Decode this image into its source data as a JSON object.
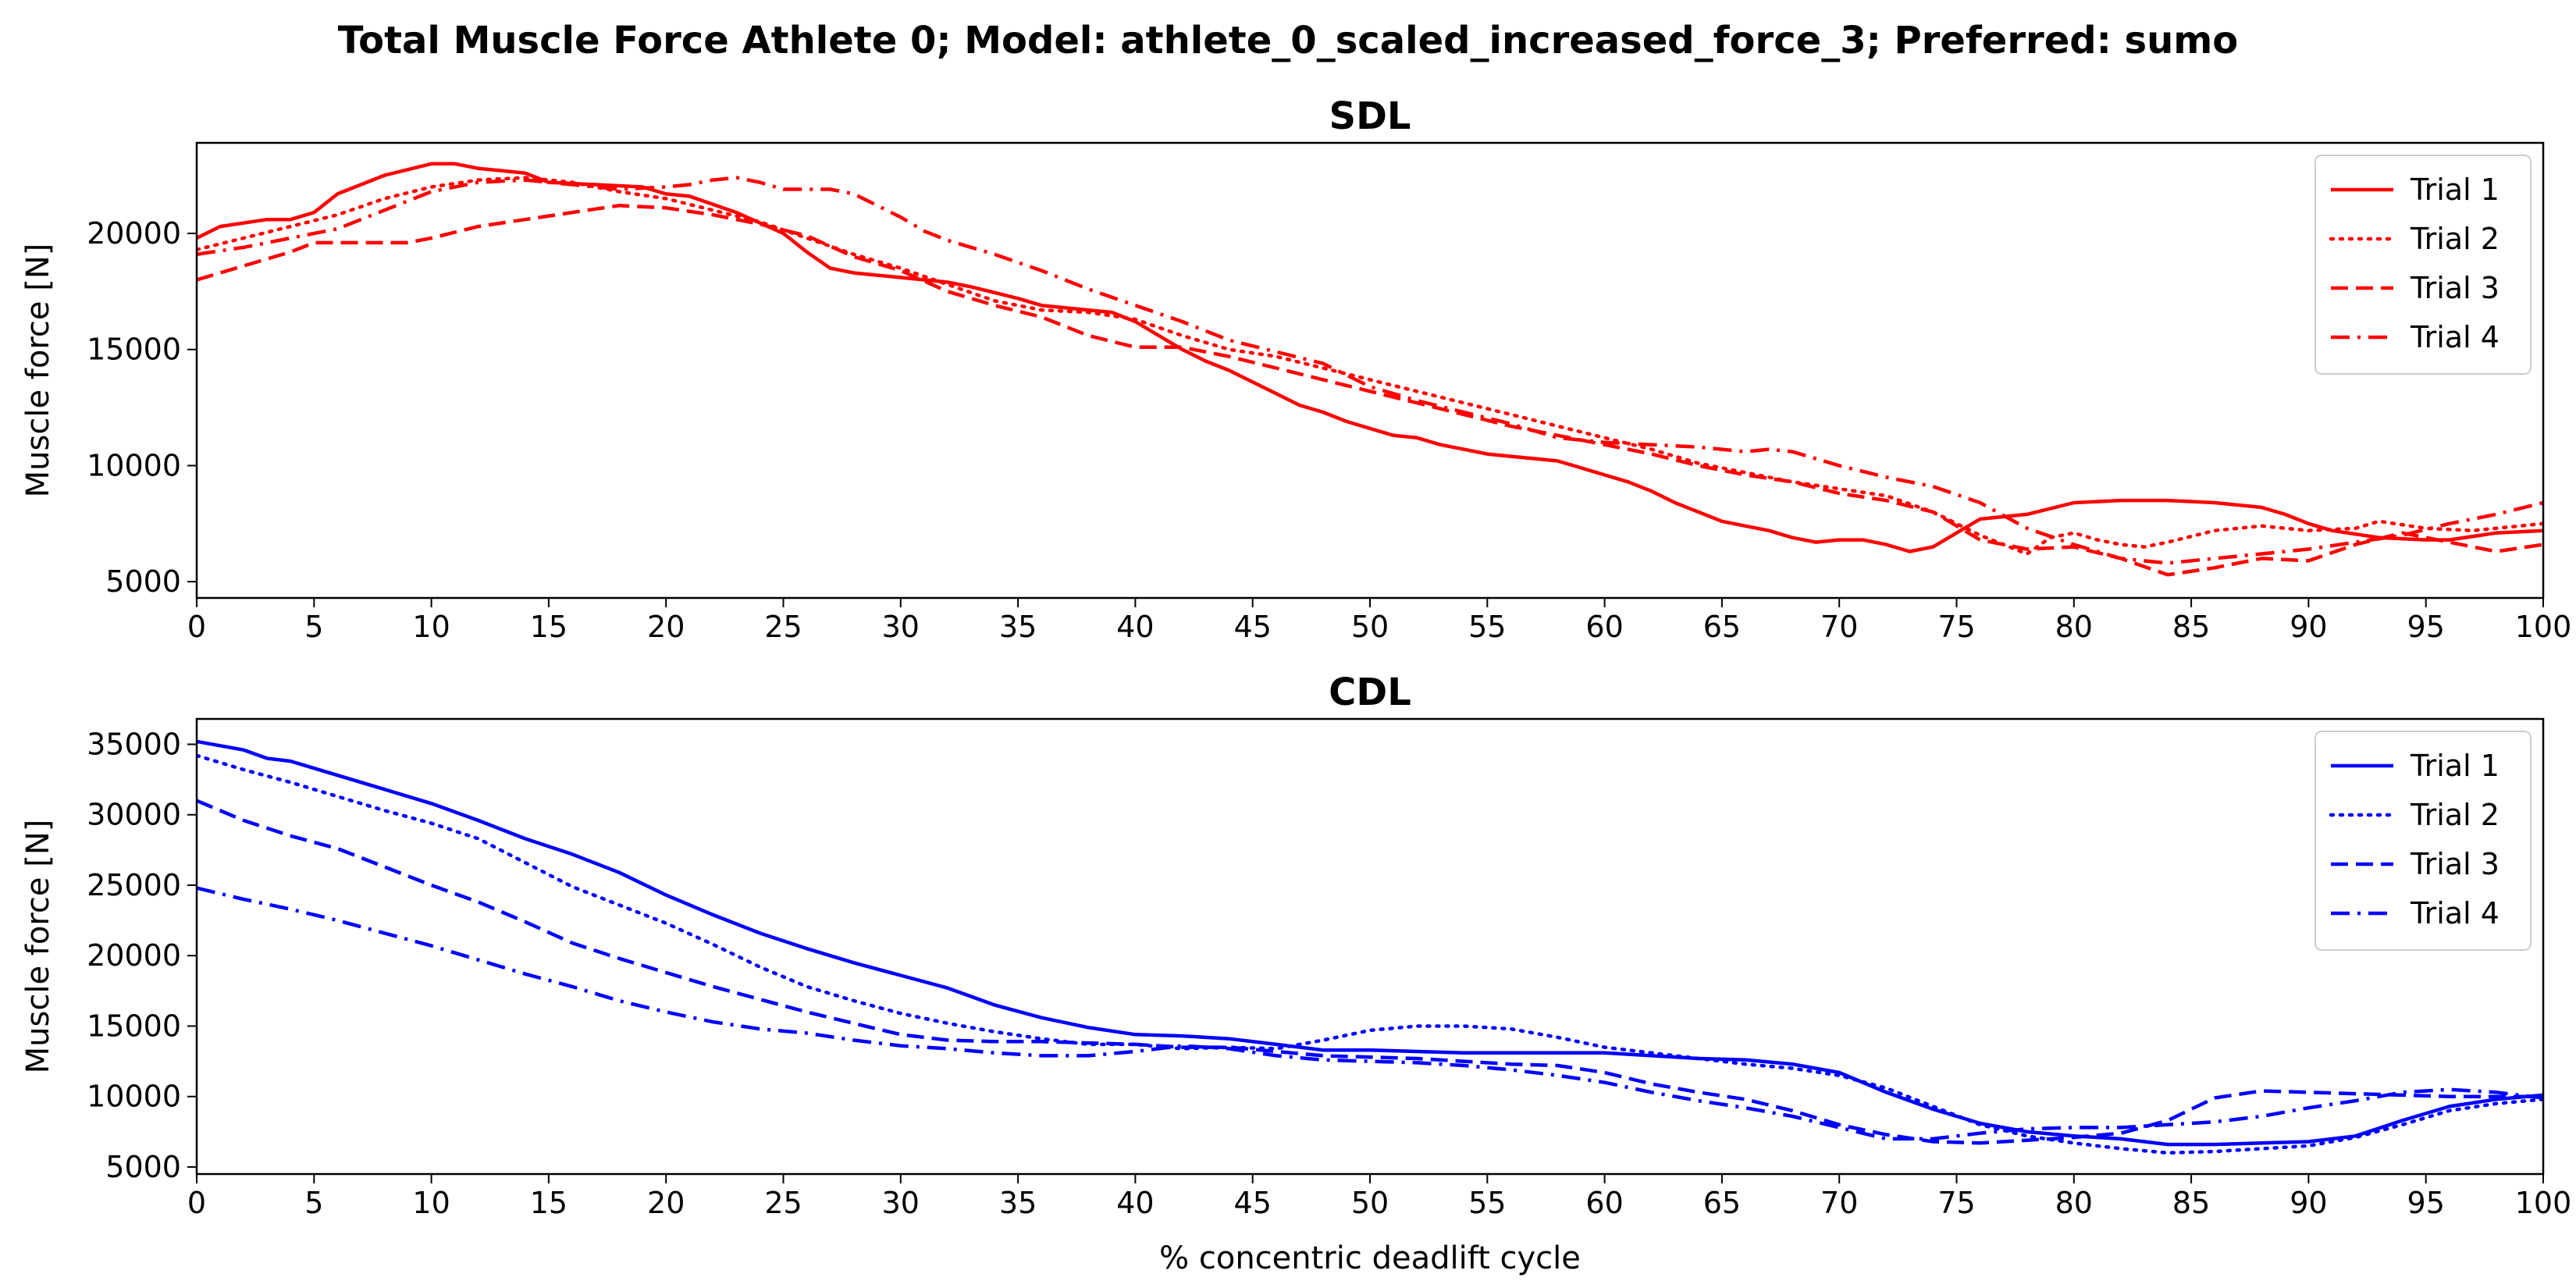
{
  "figure_title": "Total Muscle Force Athlete 0; Model: athlete_0_scaled_increased_force_3; Preferred: sumo",
  "chart_data": [
    {
      "type": "line",
      "title": "SDL",
      "xlabel": "",
      "ylabel": "Muscle force [N]",
      "xlim": [
        0,
        100
      ],
      "ylim": [
        4300,
        23900
      ],
      "xticks": [
        0,
        5,
        10,
        15,
        20,
        25,
        30,
        35,
        40,
        45,
        50,
        55,
        60,
        65,
        70,
        75,
        80,
        85,
        90,
        95,
        100
      ],
      "yticks": [
        5000,
        10000,
        15000,
        20000
      ],
      "color": "#ff0000",
      "legend": "upper-right",
      "series": [
        {
          "name": "Trial 1",
          "dash": "solid",
          "x": [
            0,
            1,
            3,
            4,
            5,
            6,
            8,
            10,
            11,
            12,
            14,
            15,
            17,
            19,
            20,
            21,
            23,
            25,
            26,
            27,
            28,
            30,
            31,
            32,
            33,
            35,
            36,
            38,
            39,
            40,
            41,
            42,
            43,
            44,
            45,
            46,
            47,
            48,
            49,
            50,
            51,
            52,
            53,
            54,
            55,
            56,
            57,
            58,
            59,
            60,
            61,
            62,
            63,
            64,
            65,
            66,
            67,
            68,
            69,
            70,
            71,
            72,
            73,
            74,
            75,
            76,
            78,
            80,
            82,
            84,
            86,
            88,
            89,
            90,
            91,
            93,
            95,
            96,
            98,
            100
          ],
          "y": [
            19800,
            20300,
            20600,
            20600,
            20900,
            21700,
            22500,
            23000,
            23000,
            22800,
            22600,
            22200,
            22100,
            22000,
            21700,
            21600,
            20900,
            20000,
            19200,
            18500,
            18300,
            18100,
            18000,
            17900,
            17700,
            17200,
            16900,
            16700,
            16600,
            16200,
            15600,
            15000,
            14500,
            14100,
            13600,
            13100,
            12600,
            12300,
            11900,
            11600,
            11300,
            11200,
            10900,
            10700,
            10500,
            10400,
            10300,
            10200,
            9900,
            9600,
            9300,
            8900,
            8400,
            8000,
            7600,
            7400,
            7200,
            6900,
            6700,
            6800,
            6800,
            6600,
            6300,
            6500,
            7100,
            7700,
            7900,
            8400,
            8500,
            8500,
            8400,
            8200,
            7900,
            7500,
            7200,
            6900,
            6800,
            6800,
            7100,
            7200
          ]
        },
        {
          "name": "Trial 2",
          "dash": "dotted",
          "x": [
            0,
            2,
            4,
            6,
            8,
            10,
            12,
            14,
            16,
            18,
            20,
            22,
            24,
            26,
            28,
            30,
            32,
            34,
            36,
            38,
            40,
            42,
            44,
            46,
            48,
            50,
            52,
            54,
            56,
            58,
            60,
            62,
            64,
            66,
            68,
            70,
            72,
            74,
            76,
            78,
            79,
            80,
            81,
            82,
            83,
            84,
            86,
            88,
            90,
            92,
            93,
            95,
            97,
            100
          ],
          "y": [
            19300,
            19800,
            20300,
            20800,
            21500,
            22000,
            22300,
            22400,
            22200,
            21800,
            21500,
            21000,
            20500,
            19800,
            19100,
            18500,
            17800,
            17100,
            16700,
            16600,
            16300,
            15600,
            15000,
            14700,
            14200,
            13700,
            13200,
            12700,
            12200,
            11700,
            11200,
            10700,
            10100,
            9700,
            9300,
            9000,
            8700,
            8000,
            7000,
            6200,
            6900,
            7100,
            6800,
            6600,
            6500,
            6700,
            7200,
            7400,
            7200,
            7300,
            7600,
            7300,
            7200,
            7500
          ]
        },
        {
          "name": "Trial 3",
          "dash": "dashed",
          "x": [
            0,
            2,
            4,
            5,
            6,
            8,
            9,
            10,
            12,
            14,
            16,
            18,
            20,
            22,
            24,
            26,
            28,
            30,
            32,
            34,
            36,
            38,
            40,
            42,
            44,
            46,
            48,
            50,
            52,
            54,
            56,
            58,
            60,
            62,
            64,
            66,
            68,
            70,
            72,
            74,
            76,
            78,
            80,
            82,
            84,
            86,
            88,
            90,
            92,
            94,
            96,
            98,
            100
          ],
          "y": [
            18000,
            18600,
            19200,
            19600,
            19600,
            19600,
            19600,
            19800,
            20300,
            20600,
            20900,
            21200,
            21100,
            20800,
            20400,
            19900,
            19000,
            18400,
            17500,
            16900,
            16400,
            15600,
            15100,
            15100,
            14700,
            14200,
            13700,
            13200,
            12700,
            12200,
            11700,
            11300,
            10900,
            10500,
            10000,
            9600,
            9300,
            8800,
            8500,
            8000,
            6800,
            6400,
            6500,
            6000,
            5300,
            5600,
            6000,
            5900,
            6600,
            7100,
            6700,
            6300,
            6600
          ]
        },
        {
          "name": "Trial 4",
          "dash": "dashdot",
          "x": [
            0,
            2,
            4,
            6,
            8,
            10,
            12,
            14,
            16,
            18,
            20,
            21,
            22,
            23,
            24,
            25,
            26,
            27,
            28,
            30,
            31,
            32,
            34,
            36,
            38,
            40,
            42,
            44,
            46,
            48,
            50,
            52,
            54,
            56,
            58,
            60,
            62,
            64,
            66,
            67,
            68,
            70,
            72,
            74,
            76,
            78,
            80,
            82,
            84,
            86,
            88,
            90,
            92,
            94,
            96,
            98,
            100
          ],
          "y": [
            19100,
            19400,
            19800,
            20200,
            21000,
            21800,
            22200,
            22300,
            22100,
            21900,
            22000,
            22100,
            22300,
            22400,
            22200,
            21900,
            21900,
            21900,
            21700,
            20700,
            20100,
            19700,
            19100,
            18400,
            17600,
            16900,
            16200,
            15400,
            14900,
            14400,
            13400,
            12800,
            12300,
            11800,
            11200,
            11000,
            10900,
            10800,
            10600,
            10700,
            10600,
            10000,
            9500,
            9100,
            8400,
            7300,
            6600,
            6000,
            5800,
            6000,
            6200,
            6400,
            6700,
            7000,
            7500,
            7900,
            8400
          ]
        }
      ]
    },
    {
      "type": "line",
      "title": "CDL",
      "xlabel": "% concentric deadlift cycle",
      "ylabel": "Muscle force [N]",
      "xlim": [
        0,
        100
      ],
      "ylim": [
        4500,
        36800
      ],
      "xticks": [
        0,
        5,
        10,
        15,
        20,
        25,
        30,
        35,
        40,
        45,
        50,
        55,
        60,
        65,
        70,
        75,
        80,
        85,
        90,
        95,
        100
      ],
      "yticks": [
        5000,
        10000,
        15000,
        20000,
        25000,
        30000,
        35000
      ],
      "color": "#0000ff",
      "legend": "upper-right",
      "series": [
        {
          "name": "Trial 1",
          "dash": "solid",
          "x": [
            0,
            2,
            3,
            4,
            6,
            8,
            10,
            12,
            14,
            16,
            18,
            20,
            22,
            24,
            26,
            28,
            30,
            32,
            34,
            36,
            38,
            40,
            42,
            44,
            46,
            48,
            50,
            52,
            54,
            56,
            58,
            60,
            62,
            64,
            66,
            68,
            70,
            72,
            74,
            76,
            78,
            80,
            82,
            84,
            86,
            88,
            90,
            92,
            94,
            96,
            98,
            100
          ],
          "y": [
            35200,
            34600,
            34000,
            33800,
            32800,
            31800,
            30800,
            29600,
            28300,
            27200,
            25900,
            24300,
            22900,
            21600,
            20500,
            19500,
            18600,
            17700,
            16500,
            15600,
            14900,
            14400,
            14300,
            14100,
            13700,
            13300,
            13300,
            13200,
            13100,
            13100,
            13100,
            13100,
            12900,
            12700,
            12600,
            12300,
            11700,
            10300,
            9100,
            8100,
            7500,
            7200,
            7000,
            6600,
            6600,
            6700,
            6800,
            7200,
            8300,
            9300,
            9800,
            10100
          ]
        },
        {
          "name": "Trial 2",
          "dash": "dotted",
          "x": [
            0,
            2,
            4,
            6,
            8,
            10,
            12,
            14,
            16,
            18,
            20,
            22,
            24,
            26,
            28,
            30,
            32,
            34,
            36,
            38,
            40,
            42,
            44,
            46,
            48,
            50,
            52,
            54,
            56,
            58,
            60,
            62,
            64,
            66,
            68,
            70,
            72,
            74,
            76,
            78,
            80,
            82,
            84,
            86,
            88,
            90,
            92,
            94,
            96,
            98,
            100
          ],
          "y": [
            34200,
            33200,
            32300,
            31300,
            30300,
            29400,
            28300,
            26600,
            24900,
            23600,
            22300,
            20800,
            19200,
            17800,
            16800,
            15900,
            15200,
            14600,
            14100,
            13700,
            13700,
            13400,
            13500,
            13400,
            14000,
            14700,
            15000,
            15000,
            14800,
            14200,
            13500,
            13100,
            12700,
            12300,
            12000,
            11500,
            10600,
            9300,
            8000,
            7200,
            6700,
            6300,
            6000,
            6100,
            6300,
            6500,
            7100,
            8000,
            9000,
            9500,
            9800
          ]
        },
        {
          "name": "Trial 3",
          "dash": "dashed",
          "x": [
            0,
            2,
            4,
            6,
            8,
            10,
            12,
            14,
            16,
            18,
            20,
            22,
            24,
            26,
            28,
            30,
            32,
            34,
            36,
            38,
            40,
            42,
            44,
            46,
            48,
            50,
            52,
            54,
            56,
            58,
            60,
            62,
            64,
            66,
            68,
            70,
            72,
            74,
            76,
            78,
            80,
            82,
            84,
            86,
            88,
            90,
            92,
            94,
            96,
            98,
            100
          ],
          "y": [
            31000,
            29600,
            28500,
            27600,
            26300,
            25000,
            23800,
            22400,
            20900,
            19800,
            18800,
            17800,
            16900,
            16000,
            15200,
            14400,
            14000,
            13900,
            13900,
            13800,
            13700,
            13500,
            13500,
            13200,
            12900,
            12800,
            12700,
            12500,
            12300,
            12200,
            11700,
            10900,
            10300,
            9800,
            9000,
            8000,
            7300,
            6800,
            6700,
            6900,
            7100,
            7400,
            8300,
            9900,
            10400,
            10300,
            10200,
            10100,
            10000,
            10000,
            10000
          ]
        },
        {
          "name": "Trial 4",
          "dash": "dashdot",
          "x": [
            0,
            2,
            4,
            6,
            8,
            10,
            12,
            14,
            16,
            18,
            20,
            22,
            24,
            26,
            28,
            30,
            32,
            34,
            36,
            38,
            40,
            42,
            44,
            46,
            48,
            50,
            52,
            54,
            56,
            58,
            60,
            62,
            64,
            66,
            68,
            70,
            72,
            74,
            76,
            78,
            80,
            82,
            84,
            86,
            88,
            90,
            92,
            94,
            96,
            98,
            100
          ],
          "y": [
            24800,
            24000,
            23300,
            22500,
            21600,
            20700,
            19700,
            18700,
            17800,
            16800,
            16000,
            15300,
            14800,
            14500,
            14000,
            13600,
            13400,
            13100,
            12900,
            12900,
            13200,
            13600,
            13400,
            12900,
            12600,
            12500,
            12400,
            12200,
            11900,
            11500,
            11000,
            10300,
            9700,
            9200,
            8600,
            7800,
            7000,
            7000,
            7400,
            7700,
            7800,
            7800,
            8000,
            8200,
            8600,
            9200,
            9700,
            10300,
            10500,
            10300,
            9900
          ]
        }
      ]
    }
  ]
}
